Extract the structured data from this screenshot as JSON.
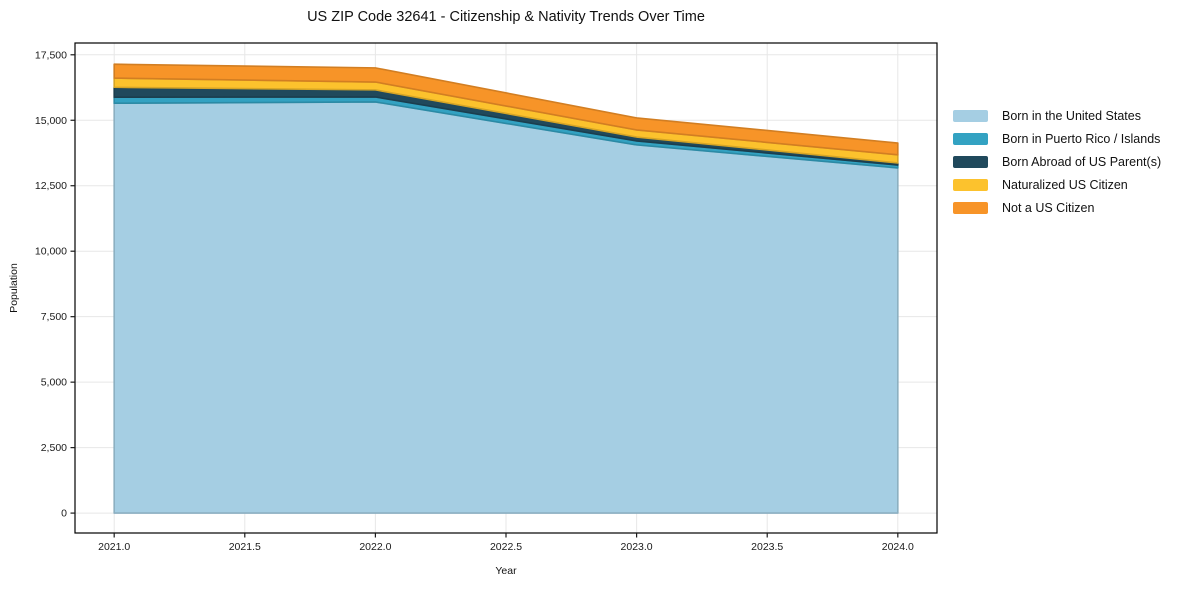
{
  "chart_data": {
    "type": "area",
    "stacked": true,
    "title": "US ZIP Code 32641 - Citizenship & Nativity Trends Over Time",
    "xlabel": "Year",
    "ylabel": "Population",
    "x": [
      2021,
      2022,
      2023,
      2024
    ],
    "series": [
      {
        "name": "Born in the United States",
        "color": "#a5cee3",
        "values": [
          15650,
          15700,
          14060,
          13180
        ]
      },
      {
        "name": "Born in Puerto Rico / Islands",
        "color": "#33a2c2",
        "values": [
          230,
          190,
          150,
          110
        ]
      },
      {
        "name": "Born Abroad of US Parent(s)",
        "color": "#20495c",
        "values": [
          380,
          270,
          150,
          80
        ]
      },
      {
        "name": "Naturalized US Citizen",
        "color": "#fcc22d",
        "values": [
          350,
          300,
          270,
          310
        ]
      },
      {
        "name": "Not a US Citizen",
        "color": "#f79428",
        "values": [
          530,
          540,
          460,
          450
        ]
      }
    ],
    "x_ticks": [
      2021.0,
      2021.5,
      2022.0,
      2022.5,
      2023.0,
      2023.5,
      2024.0
    ],
    "y_ticks": [
      0,
      2500,
      5000,
      7500,
      10000,
      12500,
      15000,
      17500
    ],
    "xlim": [
      2020.85,
      2024.15
    ],
    "ylim": [
      -760,
      17950
    ],
    "grid": true,
    "legend_position": "right",
    "colors": {
      "grid": "#e7e7e7",
      "spine": "#000000",
      "tick": "#1a1a1a",
      "background": "#ffffff"
    }
  }
}
